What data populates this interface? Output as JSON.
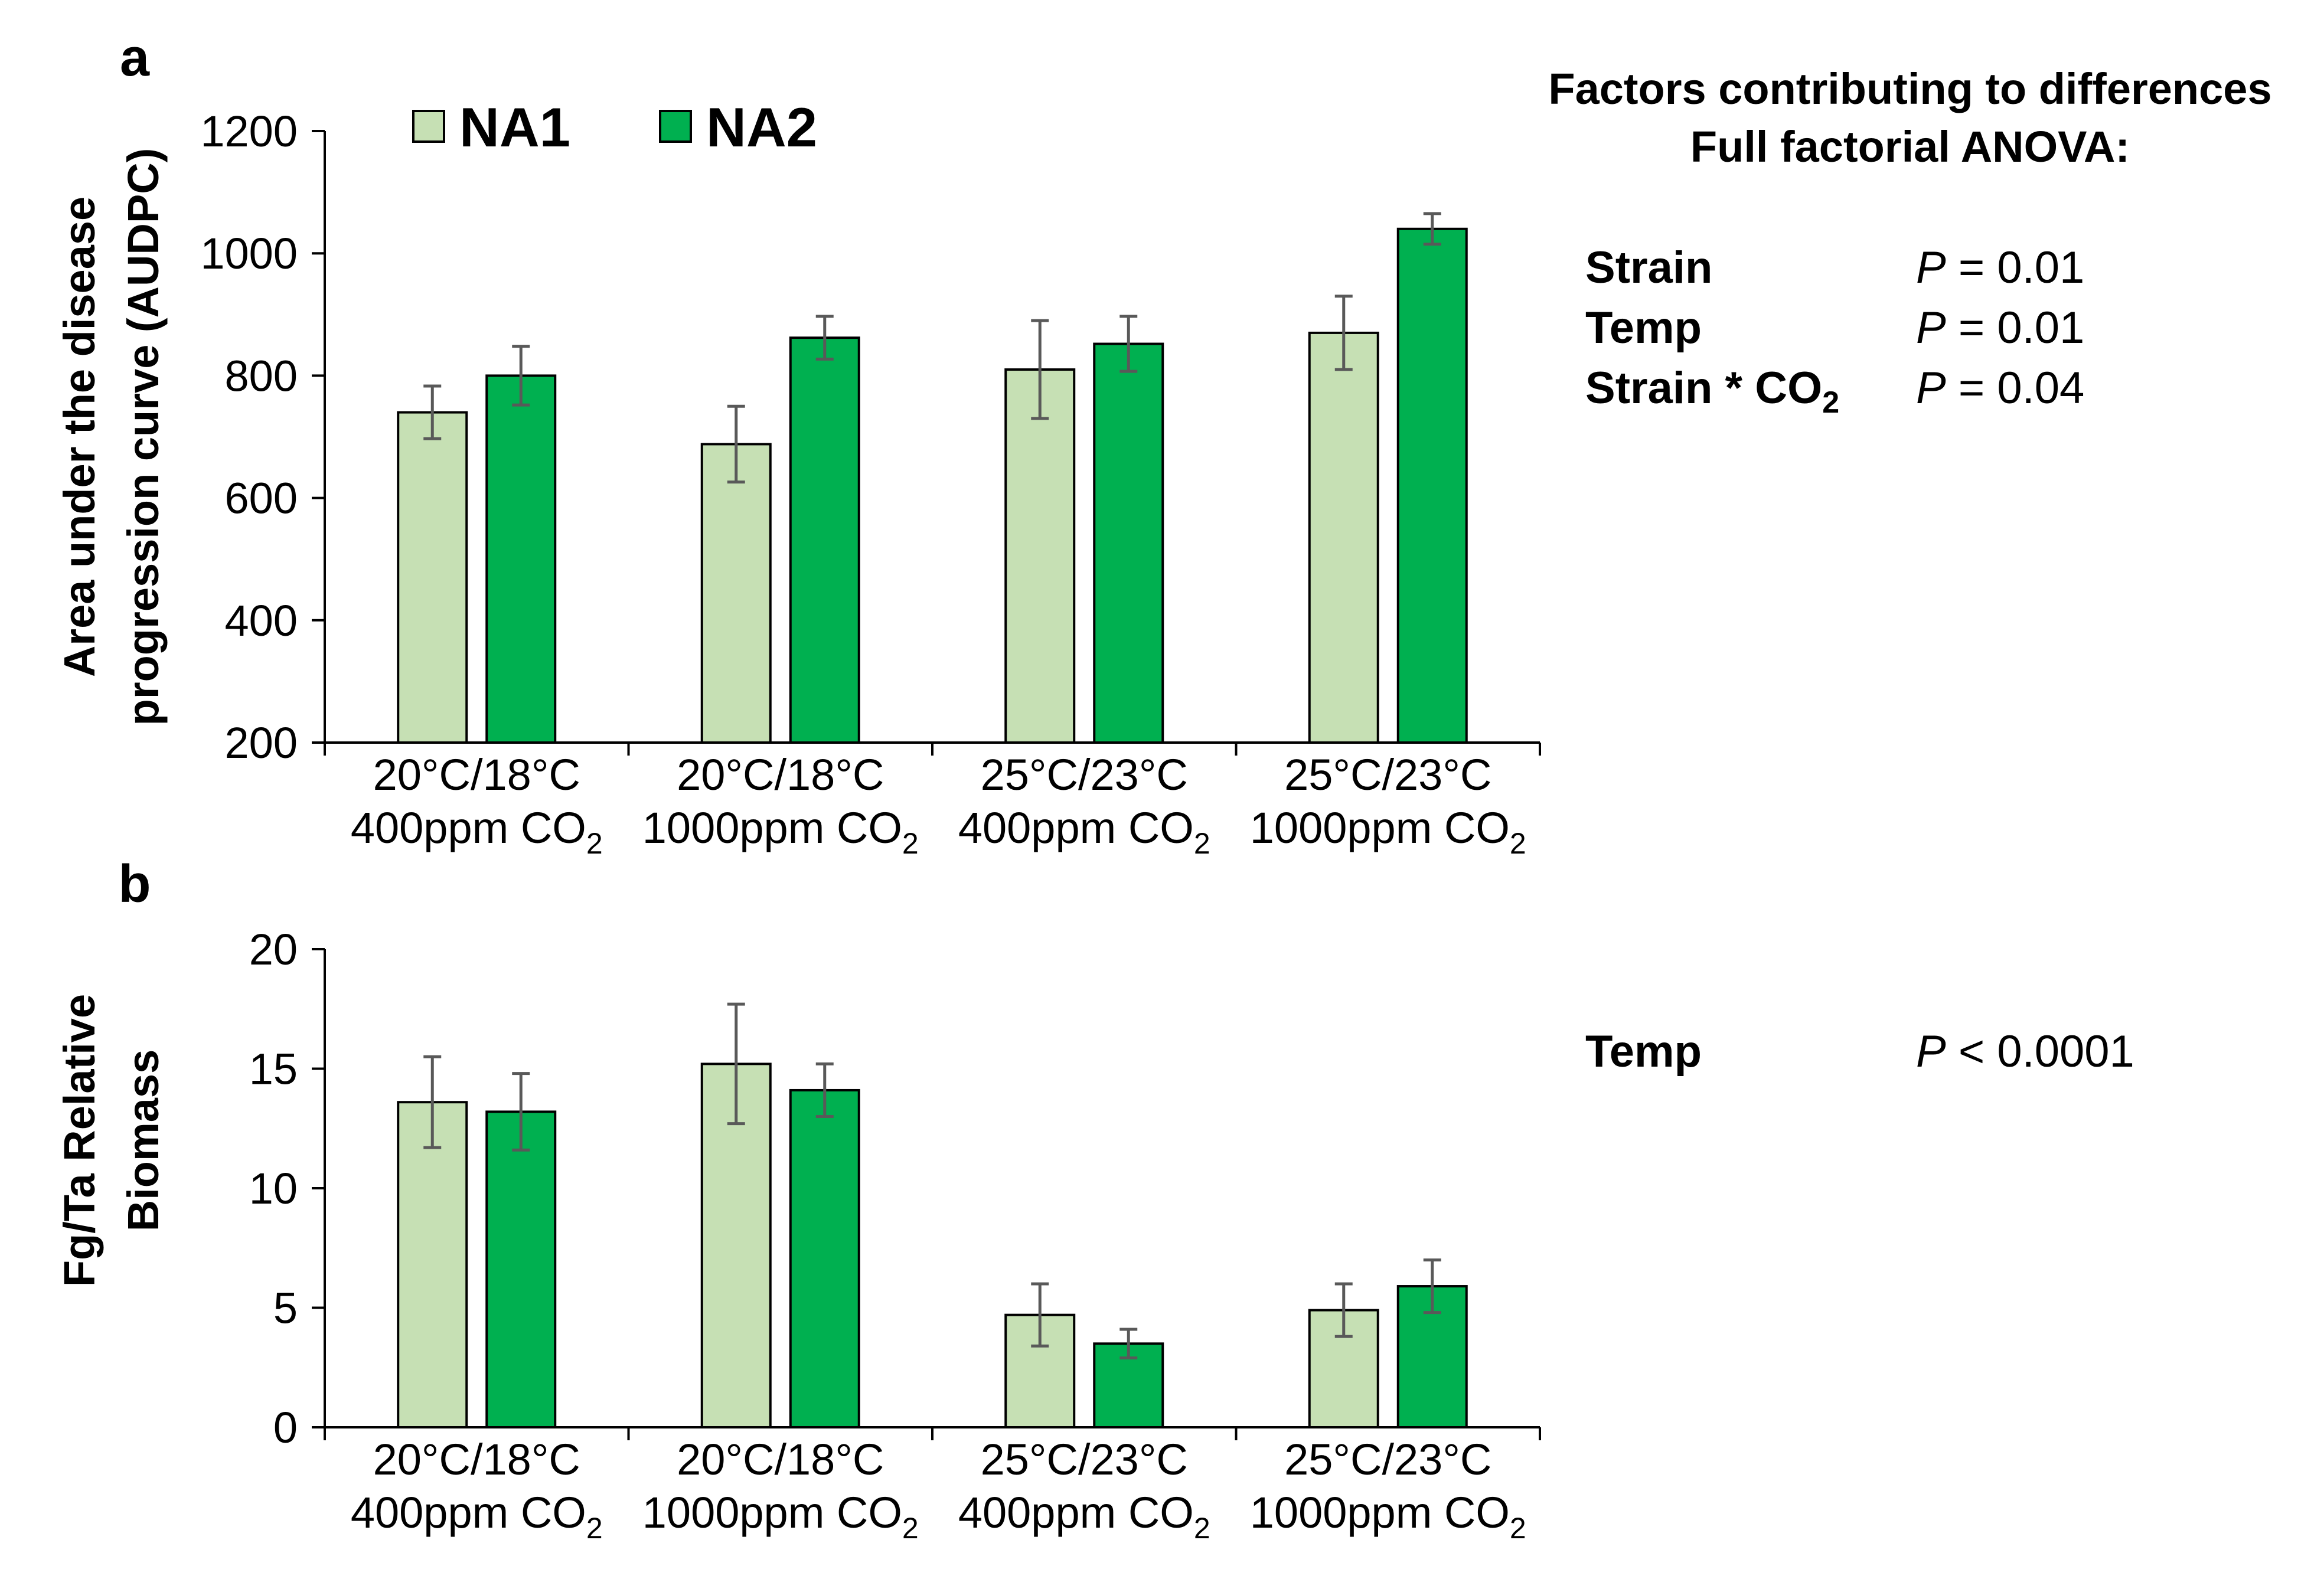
{
  "anova": {
    "title_line1": "Factors contributing to differences",
    "title_line2": "Full factorial ANOVA:",
    "panel_a": [
      {
        "factor": "Strain",
        "p_symbol": "P",
        "p_value": "= 0.01"
      },
      {
        "factor": "Temp",
        "p_symbol": "P",
        "p_value": "= 0.01"
      },
      {
        "factor": "Strain * CO",
        "factor_sub": "2",
        "p_symbol": "P",
        "p_value": "= 0.04"
      }
    ],
    "panel_b": [
      {
        "factor": "Temp",
        "p_symbol": "P",
        "p_value": "< 0.0001"
      }
    ]
  },
  "chart_data": [
    {
      "panel_label": "a",
      "type": "bar",
      "title": "",
      "xlabel": "",
      "ylabel_lines": [
        "Area under the disease",
        "progression curve (AUDPC)"
      ],
      "ylim": [
        200,
        1200
      ],
      "yticks": [
        200,
        400,
        600,
        800,
        1000,
        1200
      ],
      "legend": "top-left",
      "categories": [
        {
          "line1": "20°C/18°C",
          "line2": "400ppm CO",
          "sub": "2"
        },
        {
          "line1": "20°C/18°C",
          "line2": "1000ppm CO",
          "sub": "2"
        },
        {
          "line1": "25°C/23°C",
          "line2": "400ppm CO",
          "sub": "2"
        },
        {
          "line1": "25°C/23°C",
          "line2": "1000ppm CO",
          "sub": "2"
        }
      ],
      "series": [
        {
          "name": "NA1",
          "color": "#c6e0b4",
          "values": [
            740,
            688,
            810,
            870
          ],
          "errors": [
            43,
            62,
            80,
            60
          ]
        },
        {
          "name": "NA2",
          "color": "#00b050",
          "values": [
            800,
            862,
            852,
            1040
          ],
          "errors": [
            48,
            35,
            45,
            25
          ]
        }
      ]
    },
    {
      "panel_label": "b",
      "type": "bar",
      "title": "",
      "xlabel": "",
      "ylabel_lines": [
        "Fg/Ta Relative",
        "Biomass"
      ],
      "ylim": [
        0,
        20
      ],
      "yticks": [
        0,
        5,
        10,
        15,
        20
      ],
      "legend": "none",
      "categories": [
        {
          "line1": "20°C/18°C",
          "line2": "400ppm CO",
          "sub": "2"
        },
        {
          "line1": "20°C/18°C",
          "line2": "1000ppm CO",
          "sub": "2"
        },
        {
          "line1": "25°C/23°C",
          "line2": "400ppm CO",
          "sub": "2"
        },
        {
          "line1": "25°C/23°C",
          "line2": "1000ppm CO",
          "sub": "2"
        }
      ],
      "series": [
        {
          "name": "NA1",
          "color": "#c6e0b4",
          "values": [
            13.6,
            15.2,
            4.7,
            4.9
          ],
          "errors": [
            1.9,
            2.5,
            1.3,
            1.1
          ]
        },
        {
          "name": "NA2",
          "color": "#00b050",
          "values": [
            13.2,
            14.1,
            3.5,
            5.9
          ],
          "errors": [
            1.6,
            1.1,
            0.6,
            1.1
          ]
        }
      ]
    }
  ]
}
